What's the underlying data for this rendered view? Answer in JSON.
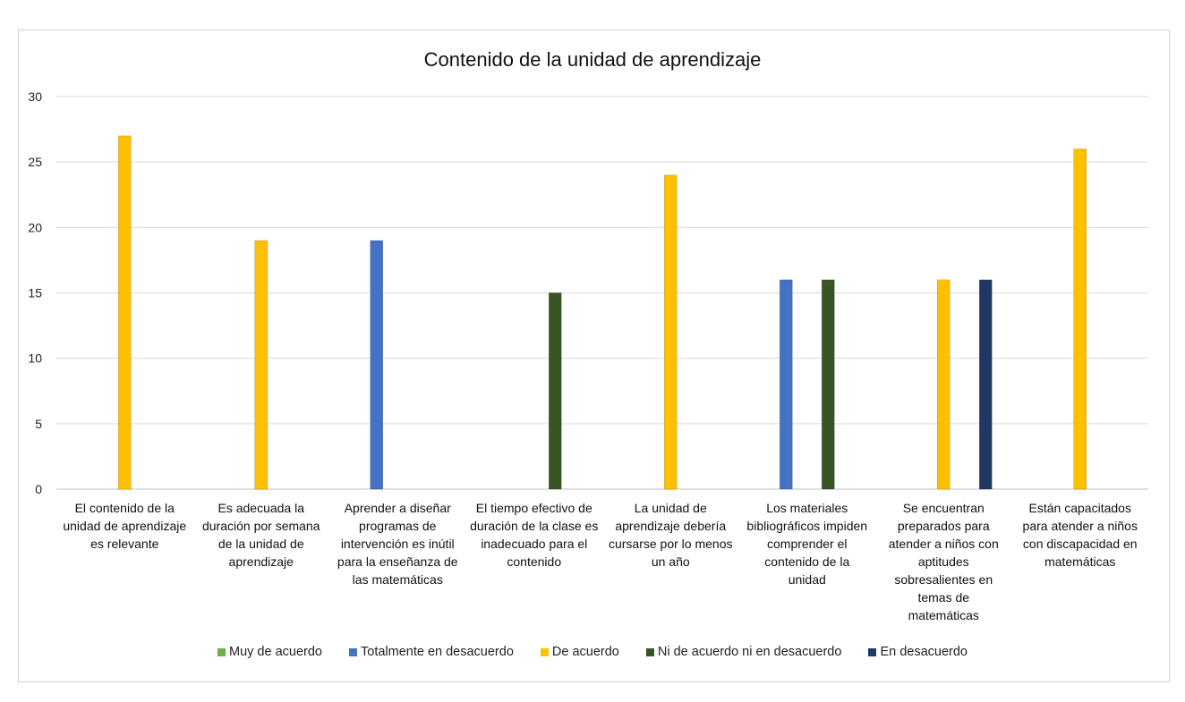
{
  "chart_data": {
    "type": "bar",
    "title": "Contenido  de  la  unidad  de  aprendizaje",
    "xlabel": "",
    "ylabel": "",
    "ylim": [
      0,
      30
    ],
    "yticks": [
      0,
      5,
      10,
      15,
      20,
      25,
      30
    ],
    "grid": true,
    "legend_position": "bottom",
    "categories": [
      "El contenido de la\nunidad de aprendizaje\nes relevante",
      "Es adecuada la\nduración por semana\nde la unidad de\naprendizaje",
      "Aprender a diseñar\nprogramas de\nintervención es inútil\npara la enseñanza de\nlas matemáticas",
      "El tiempo efectivo de\nduración de la clase es\ninadecuado para el\ncontenido",
      "La unidad de\naprendizaje debería\ncursarse por lo menos\nun año",
      "Los materiales\nbibliográficos impiden\ncomprender el\ncontenido de la\nunidad",
      "Se encuentran\npreparados para\natender a niños con\naptitudes\nsobresalientes en\ntemas de\nmatemáticas",
      "Están capacitados\npara atender a niños\ncon discapacidad en\nmatemáticas"
    ],
    "series": [
      {
        "name": "Muy de acuerdo",
        "color": "#70ad47",
        "values": [
          null,
          null,
          null,
          null,
          null,
          null,
          null,
          null
        ]
      },
      {
        "name": "Totalmente en desacuerdo",
        "color": "#4472c4",
        "values": [
          null,
          null,
          19,
          null,
          null,
          16,
          null,
          null
        ]
      },
      {
        "name": "De acuerdo",
        "color": "#ffc000",
        "values": [
          27,
          19,
          null,
          null,
          24,
          null,
          16,
          26
        ]
      },
      {
        "name": "Ni de acuerdo ni en desacuerdo",
        "color": "#375623",
        "values": [
          null,
          null,
          null,
          15,
          null,
          16,
          null,
          null
        ]
      },
      {
        "name": "En desacuerdo",
        "color": "#1f3864",
        "values": [
          null,
          null,
          null,
          null,
          null,
          null,
          16,
          null
        ]
      }
    ]
  }
}
